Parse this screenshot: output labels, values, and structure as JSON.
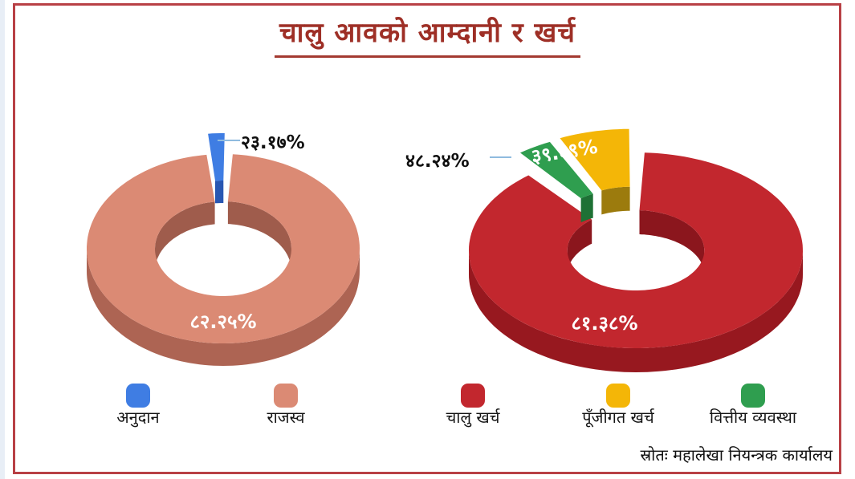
{
  "title": "चालु आवको आम्दानी र खर्च",
  "source": "स्रोतः महालेखा नियन्त्रक कार्यालय",
  "colors": {
    "frame_border": "#b84045",
    "title_text": "#9e2f26",
    "callout_line": "#8fbbdf",
    "inside_label_text": "#ffffff",
    "callout_label_text": "#101010"
  },
  "chart_data": [
    {
      "type": "pie",
      "style": "3d-exploded-donut",
      "name": "income",
      "legend_position": "bottom",
      "slices": [
        {
          "label": "अनुदान",
          "value_label": "२३.१७%",
          "value": 23.17,
          "color": "#3f7de3",
          "side_color": "#2d5fc2",
          "start": -96,
          "end": -89,
          "explode": 26,
          "label_placement": "callout"
        },
        {
          "label": "राजस्व",
          "value_label": "८२.२५%",
          "value": 82.25,
          "color": "#db8a74",
          "side_color": "#ad6453",
          "start": -86,
          "end": 263,
          "explode": 0,
          "label_placement": "inside"
        }
      ]
    },
    {
      "type": "pie",
      "style": "3d-exploded-donut",
      "name": "expenditure",
      "legend_position": "bottom",
      "slices": [
        {
          "label": "चालु खर्च",
          "value_label": "८१.३८%",
          "value": 81.38,
          "color": "#c2272e",
          "side_color": "#97181f",
          "start": -87,
          "end": 230,
          "explode": 0,
          "label_placement": "inside"
        },
        {
          "label": "पूँजीगत खर्च",
          "value_label": "३९.६९%",
          "value": 39.69,
          "color": "#f4b607",
          "side_color": "#aa860e",
          "start": -115,
          "end": -90.5,
          "explode": 30,
          "label_placement": "inside"
        },
        {
          "label": "वित्तीय व्यवस्था",
          "value_label": "४८.२४%",
          "value": 48.24,
          "color": "#2f9e4f",
          "side_color": "#217b3a",
          "start": -128,
          "end": -116,
          "explode": 30,
          "label_placement": "callout"
        }
      ]
    }
  ]
}
